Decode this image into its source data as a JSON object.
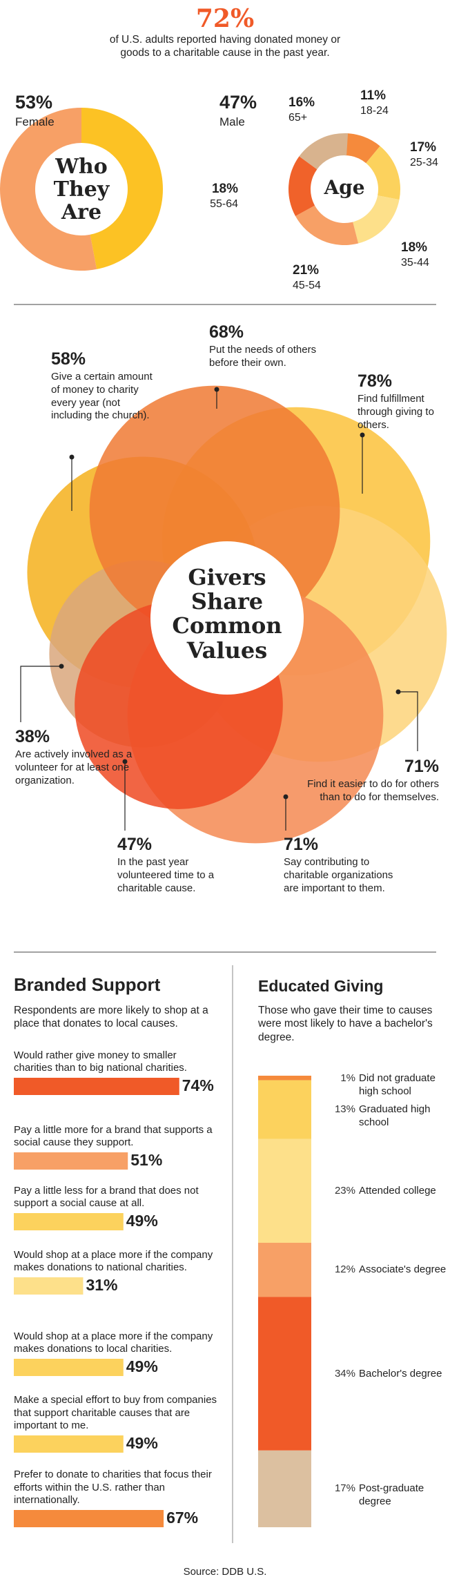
{
  "header": {
    "headline": "72%",
    "text": "of U.S. adults reported having donated money or goods to a charitable cause in the past year."
  },
  "chart_data": [
    {
      "type": "donut",
      "title": "Who They Are",
      "categories": [
        "Female",
        "Male"
      ],
      "values": [
        53,
        47
      ],
      "value_labels": [
        "53%",
        "47%"
      ],
      "colors": [
        "#f7a066",
        "#fcc224"
      ]
    },
    {
      "type": "donut",
      "title": "Age",
      "categories": [
        "18-24",
        "25-34",
        "35-44",
        "45-54",
        "55-64",
        "65+"
      ],
      "values": [
        11,
        17,
        18,
        21,
        18,
        16
      ],
      "value_labels": [
        "11%",
        "17%",
        "18%",
        "21%",
        "18%",
        "16%"
      ],
      "colors": [
        "#f58a3c",
        "#fcd25d",
        "#fde08a",
        "#f7a066",
        "#f0622a",
        "#d8b38e"
      ]
    },
    {
      "type": "venn",
      "title": "Givers Share Common Values",
      "categories": [
        "Give a certain amount of money to charity every year (not including the church).",
        "Put the needs of others before their own.",
        "Find fulfillment through giving to others.",
        "Find it easier to do for others than to do for themselves.",
        "Say contributing to charitable organizations are important to them.",
        "In the past year volunteered time to a charitable cause.",
        "Are actively involved as a volunteer for at least one organization."
      ],
      "values": [
        58,
        68,
        78,
        71,
        71,
        47,
        38
      ],
      "value_labels": [
        "58%",
        "68%",
        "78%",
        "71%",
        "71%",
        "47%",
        "38%"
      ],
      "colors": [
        "#f5b01c",
        "#f07a34",
        "#fcc23b",
        "#fdd37a",
        "#f58a52",
        "#ef4a23",
        "#d9a77d"
      ]
    },
    {
      "type": "bar",
      "title": "Branded Support",
      "subtitle": "Respondents are more likely to shop at a place that donates to local causes.",
      "categories": [
        "Would rather give money to smaller charities than to big national charities.",
        "Pay a little more for a brand that supports a social cause they support.",
        "Pay a little less for a brand that does not support a social cause at all.",
        "Would shop at a place more if the company makes donations to national charities.",
        "Would shop at a place more if the company makes donations to local charities.",
        "Make a special effort to buy from companies that support charitable causes that are important to me.",
        "Prefer to donate to charities that focus their efforts within the U.S. rather than internationally."
      ],
      "values": [
        74,
        51,
        49,
        31,
        49,
        49,
        67
      ],
      "value_labels": [
        "74%",
        "51%",
        "49%",
        "31%",
        "49%",
        "49%",
        "67%"
      ],
      "colors": [
        "#f05a28",
        "#f7a066",
        "#fcd25d",
        "#fde08a",
        "#fcd25d",
        "#fcd25d",
        "#f58a3c"
      ]
    },
    {
      "type": "stacked-bar",
      "title": "Educated Giving",
      "subtitle": "Those who gave their time to causes were most likely to have a bachelor's degree.",
      "categories": [
        "Did not graduate high school",
        "Graduated high school",
        "Attended college",
        "Associate's degree",
        "Bachelor's degree",
        "Post-graduate degree"
      ],
      "values": [
        1,
        13,
        23,
        12,
        34,
        17
      ],
      "value_labels": [
        "1%",
        "13%",
        "23%",
        "12%",
        "34%",
        "17%"
      ],
      "colors": [
        "#f58a3c",
        "#fcd25d",
        "#fde08a",
        "#f7a066",
        "#f05a28",
        "#dcc0a0"
      ]
    }
  ],
  "source": "Source: DDB U.S."
}
